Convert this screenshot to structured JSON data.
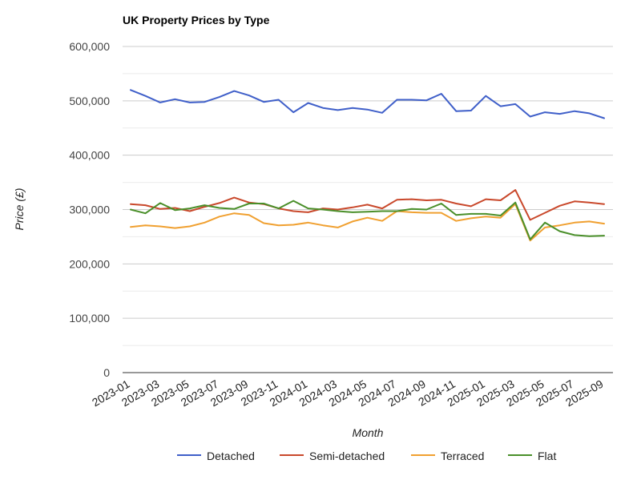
{
  "chart_data": {
    "type": "line",
    "title": "UK Property Prices by Type",
    "xlabel": "Month",
    "ylabel": "Price (£)",
    "ylim": [
      0,
      600000
    ],
    "yticks": [
      0,
      100000,
      200000,
      300000,
      400000,
      500000,
      600000
    ],
    "ytick_labels": [
      "0",
      "100,000",
      "200,000",
      "300,000",
      "400,000",
      "500,000",
      "600,000"
    ],
    "minor_gridlines": true,
    "legend_position": "bottom",
    "x": [
      "2023-01",
      "2023-02",
      "2023-03",
      "2023-04",
      "2023-05",
      "2023-06",
      "2023-07",
      "2023-08",
      "2023-09",
      "2023-10",
      "2023-11",
      "2023-12",
      "2024-01",
      "2024-02",
      "2024-03",
      "2024-04",
      "2024-05",
      "2024-06",
      "2024-07",
      "2024-08",
      "2024-09",
      "2024-10",
      "2024-11",
      "2024-12",
      "2025-01",
      "2025-02",
      "2025-03",
      "2025-04",
      "2025-05",
      "2025-06",
      "2025-07",
      "2025-08",
      "2025-09"
    ],
    "xtick_labels": [
      "2023-01",
      "2023-03",
      "2023-05",
      "2023-07",
      "2023-09",
      "2023-11",
      "2024-01",
      "2024-03",
      "2024-05",
      "2024-07",
      "2024-09",
      "2024-11",
      "2025-01",
      "2025-03",
      "2025-05",
      "2025-07",
      "2025-09"
    ],
    "series": [
      {
        "name": "Detached",
        "color": "#3f5fc9",
        "values": [
          520000,
          509000,
          497000,
          503000,
          497000,
          498000,
          507000,
          518000,
          510000,
          498000,
          502000,
          479000,
          496000,
          487000,
          483000,
          487000,
          484000,
          478000,
          502000,
          502000,
          501000,
          513000,
          481000,
          482000,
          509000,
          490000,
          494000,
          471000,
          479000,
          476000,
          481000,
          477000,
          468000
        ]
      },
      {
        "name": "Semi-detached",
        "color": "#c9482b",
        "values": [
          310000,
          308000,
          301000,
          303000,
          297000,
          305000,
          312000,
          322000,
          313000,
          310000,
          302000,
          297000,
          295000,
          302000,
          300000,
          304000,
          309000,
          302000,
          318000,
          319000,
          317000,
          318000,
          311000,
          306000,
          319000,
          317000,
          336000,
          281000,
          294000,
          307000,
          315000,
          313000,
          310000
        ]
      },
      {
        "name": "Terraced",
        "color": "#f0a030",
        "values": [
          268000,
          271000,
          269000,
          266000,
          269000,
          276000,
          287000,
          293000,
          290000,
          275000,
          271000,
          272000,
          276000,
          271000,
          267000,
          278000,
          285000,
          279000,
          297000,
          295000,
          294000,
          294000,
          279000,
          284000,
          287000,
          285000,
          310000,
          243000,
          267000,
          271000,
          276000,
          278000,
          274000
        ]
      },
      {
        "name": "Flat",
        "color": "#4a8f2a",
        "values": [
          300000,
          293000,
          312000,
          299000,
          302000,
          308000,
          303000,
          301000,
          311000,
          311000,
          302000,
          316000,
          302000,
          300000,
          297000,
          295000,
          296000,
          297000,
          297000,
          301000,
          300000,
          311000,
          290000,
          292000,
          292000,
          289000,
          313000,
          245000,
          276000,
          260000,
          253000,
          251000,
          252000
        ]
      }
    ]
  }
}
